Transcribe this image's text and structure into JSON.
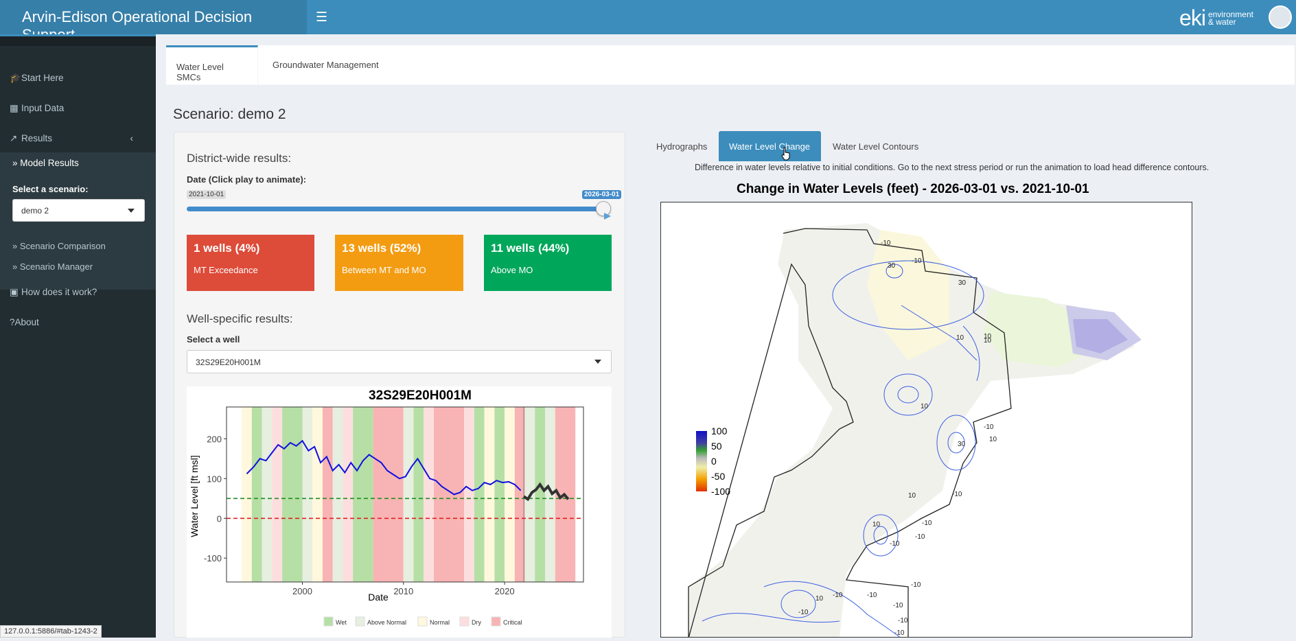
{
  "header": {
    "title": "Arvin-Edison Operational Decision Support",
    "menu_icon": "hamburger-icon",
    "brand_main": "eki",
    "brand_line1": "environment",
    "brand_line2": "& water"
  },
  "sidebar": {
    "items": [
      {
        "label": "Start Here",
        "icon": "graduation-cap-icon"
      },
      {
        "label": "Input Data",
        "icon": "table-icon"
      },
      {
        "label": "Results",
        "icon": "line-chart-icon"
      },
      {
        "label": "How does it work?",
        "icon": "book-icon"
      },
      {
        "label": "About",
        "icon": "question-icon"
      }
    ],
    "sub_items": [
      {
        "label": "Model Results"
      },
      {
        "label": "Scenario Comparison"
      },
      {
        "label": "Scenario Manager"
      }
    ],
    "scenario_label": "Select a scenario:",
    "scenario_value": "demo 2"
  },
  "url_tooltip": "127.0.0.1:5886/#tab-1243-2",
  "main_tabs": [
    {
      "label": "Water Level SMCs",
      "active": true
    },
    {
      "label": "Groundwater Management",
      "active": false
    }
  ],
  "scenario_title": "Scenario: demo 2",
  "district": {
    "heading": "District-wide results:",
    "date_label": "Date (Click play to animate):",
    "slider_min": "2021-10-01",
    "slider_value": "2026-03-01",
    "slider_fraction": 1.0,
    "boxes": [
      {
        "count": "1 wells (4%)",
        "label": "MT Exceedance",
        "color": "#dd4b39"
      },
      {
        "count": "13 wells (52%)",
        "label": "Between MT and MO",
        "color": "#f39c12"
      },
      {
        "count": "11 wells (44%)",
        "label": "Above MO",
        "color": "#00a65a"
      }
    ]
  },
  "well": {
    "heading": "Well-specific results:",
    "select_label": "Select a well",
    "select_value": "32S29E20H001M"
  },
  "chart_data": {
    "type": "line",
    "title": "32S29E20H001M",
    "xlabel": "Date",
    "ylabel": "Water Level [ft msl]",
    "xlim": [
      1992.5,
      2027.8
    ],
    "ylim": [
      -160,
      280
    ],
    "x_ticks": [
      2000,
      2010,
      2020
    ],
    "y_ticks": [
      200,
      100,
      0,
      -100
    ],
    "mt_line": 0,
    "mo_line": 50,
    "legend": [
      {
        "label": "Wet",
        "color": "#b6dfa6"
      },
      {
        "label": "Above Normal",
        "color": "#e6efe0"
      },
      {
        "label": "Normal",
        "color": "#fff8dd"
      },
      {
        "label": "Dry",
        "color": "#fddede"
      },
      {
        "label": "Critical",
        "color": "#f8b4b4"
      }
    ],
    "year_types": [
      {
        "start": 1994,
        "end": 1995,
        "type": "Normal"
      },
      {
        "start": 1995,
        "end": 1996,
        "type": "Wet"
      },
      {
        "start": 1996,
        "end": 1997,
        "type": "Above Normal"
      },
      {
        "start": 1997,
        "end": 1998,
        "type": "Dry"
      },
      {
        "start": 1998,
        "end": 2000,
        "type": "Wet"
      },
      {
        "start": 2000,
        "end": 2001,
        "type": "Above Normal"
      },
      {
        "start": 2001,
        "end": 2002,
        "type": "Normal"
      },
      {
        "start": 2002,
        "end": 2003,
        "type": "Critical"
      },
      {
        "start": 2003,
        "end": 2004,
        "type": "Above Normal"
      },
      {
        "start": 2004,
        "end": 2005,
        "type": "Dry"
      },
      {
        "start": 2005,
        "end": 2007,
        "type": "Wet"
      },
      {
        "start": 2007,
        "end": 2010,
        "type": "Critical"
      },
      {
        "start": 2010,
        "end": 2011,
        "type": "Above Normal"
      },
      {
        "start": 2011,
        "end": 2012,
        "type": "Wet"
      },
      {
        "start": 2012,
        "end": 2013,
        "type": "Dry"
      },
      {
        "start": 2013,
        "end": 2016,
        "type": "Critical"
      },
      {
        "start": 2016,
        "end": 2017,
        "type": "Dry"
      },
      {
        "start": 2017,
        "end": 2018,
        "type": "Wet"
      },
      {
        "start": 2018,
        "end": 2019,
        "type": "Normal"
      },
      {
        "start": 2019,
        "end": 2020,
        "type": "Wet"
      },
      {
        "start": 2020,
        "end": 2021,
        "type": "Normal"
      },
      {
        "start": 2021,
        "end": 2022,
        "type": "Critical"
      },
      {
        "start": 2022,
        "end": 2023,
        "type": "Above Normal"
      },
      {
        "start": 2023,
        "end": 2024,
        "type": "Wet"
      },
      {
        "start": 2024,
        "end": 2025,
        "type": "Above Normal"
      },
      {
        "start": 2025,
        "end": 2027,
        "type": "Critical"
      }
    ],
    "current_marker_year": 2021.9,
    "series": [
      {
        "style": "historical",
        "color": "#1010e0",
        "x": [
          1994.5,
          1995.2,
          1995.8,
          1996.4,
          1997.0,
          1997.6,
          1998.2,
          1998.8,
          1999.4,
          2000.0,
          2000.6,
          2001.2,
          2001.8,
          2002.4,
          2003.0,
          2003.6,
          2004.2,
          2004.8,
          2005.4,
          2006.0,
          2006.6,
          2007.2,
          2007.8,
          2008.4,
          2009.0,
          2009.6,
          2010.2,
          2010.8,
          2011.4,
          2012.0,
          2012.6,
          2013.2,
          2013.8,
          2014.4,
          2015.0,
          2015.6,
          2016.2,
          2016.8,
          2017.4,
          2018.0,
          2018.6,
          2019.2,
          2019.8,
          2020.4,
          2021.0,
          2021.6
        ],
        "y": [
          112,
          130,
          150,
          145,
          165,
          185,
          175,
          190,
          182,
          195,
          170,
          180,
          140,
          155,
          120,
          135,
          115,
          140,
          120,
          145,
          160,
          150,
          140,
          120,
          110,
          100,
          105,
          130,
          150,
          125,
          100,
          95,
          80,
          70,
          60,
          65,
          80,
          70,
          75,
          90,
          85,
          95,
          90,
          92,
          85,
          70
        ]
      },
      {
        "style": "projected",
        "color": "#333333",
        "x": [
          2021.9,
          2022.3,
          2022.7,
          2023.1,
          2023.5,
          2023.9,
          2024.3,
          2024.7,
          2025.1,
          2025.5,
          2025.9,
          2026.3
        ],
        "y": [
          55,
          48,
          65,
          72,
          85,
          70,
          80,
          62,
          70,
          52,
          60,
          48
        ]
      }
    ]
  },
  "right_tabs": [
    {
      "label": "Hydrographs",
      "active": false
    },
    {
      "label": "Water Level Change",
      "active": true
    },
    {
      "label": "Water Level Contours",
      "active": false
    }
  ],
  "right_note": "Difference in water levels relative to initial conditions. Go to the next stress period or run the animation to load head difference contours.",
  "map": {
    "title": "Change in Water Levels (feet) -  2026-03-01  vs. 2021-10-01",
    "legend_values": [
      "100",
      "50",
      "0",
      "-50",
      "-100"
    ],
    "contour_labels": [
      "-10",
      "30",
      "-10",
      "30",
      "10",
      "10",
      "10",
      "10",
      "-10",
      "10",
      "30",
      "-10",
      "-10",
      "10",
      "-10",
      "-10",
      "10",
      "-10",
      "-10",
      "-10",
      "-10",
      "10",
      "-10",
      "-10",
      "-10"
    ]
  }
}
